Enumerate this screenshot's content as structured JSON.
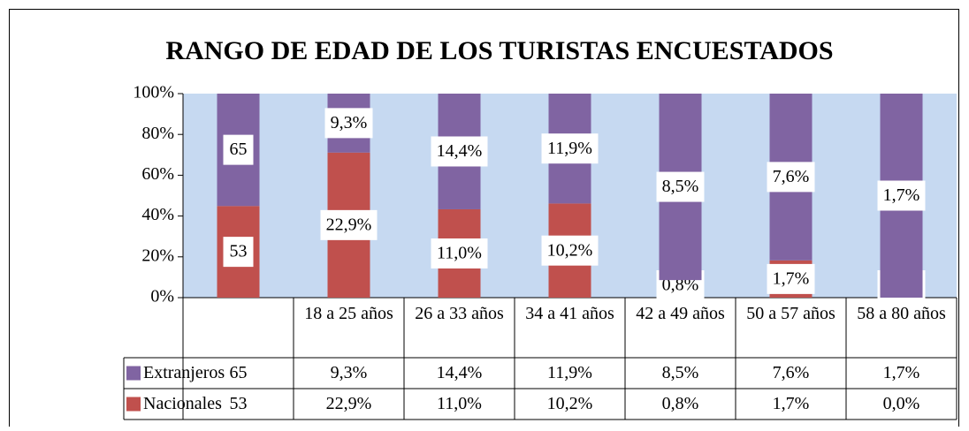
{
  "chart_data": {
    "type": "stacked_percent_bar",
    "title": "RANGO DE EDAD DE LOS TURISTAS ENCUESTADOS",
    "categories": [
      null,
      "18 a 25 años",
      "26 a 33 años",
      "34 a 41 años",
      "42 a 49 años",
      "50 a 57 años",
      "58 a 80 años"
    ],
    "series": [
      {
        "name": "Extranjeros",
        "color": "#8064a2",
        "values": [
          65,
          9.3,
          14.4,
          11.9,
          8.5,
          7.6,
          1.7
        ],
        "value_labels": [
          "65",
          "9,3%",
          "14,4%",
          "11,9%",
          "8,5%",
          "7,6%",
          "1,7%"
        ]
      },
      {
        "name": "Nacionales",
        "color": "#c0504d",
        "values": [
          53,
          22.9,
          11.0,
          10.2,
          0.8,
          1.7,
          0.0
        ],
        "value_labels": [
          "53",
          "22,9%",
          "11,0%",
          "10,2%",
          "0,8%",
          "1,7%",
          "0,0%"
        ]
      }
    ],
    "ylim": [
      0,
      100
    ],
    "yticks": [
      {
        "value": 0,
        "label": "0%"
      },
      {
        "value": 20,
        "label": "20%"
      },
      {
        "value": 40,
        "label": "40%"
      },
      {
        "value": 60,
        "label": "60%"
      },
      {
        "value": 80,
        "label": "80%"
      },
      {
        "value": 100,
        "label": "100%"
      }
    ],
    "plot_background": "#c6d9f1",
    "data_table": true
  }
}
